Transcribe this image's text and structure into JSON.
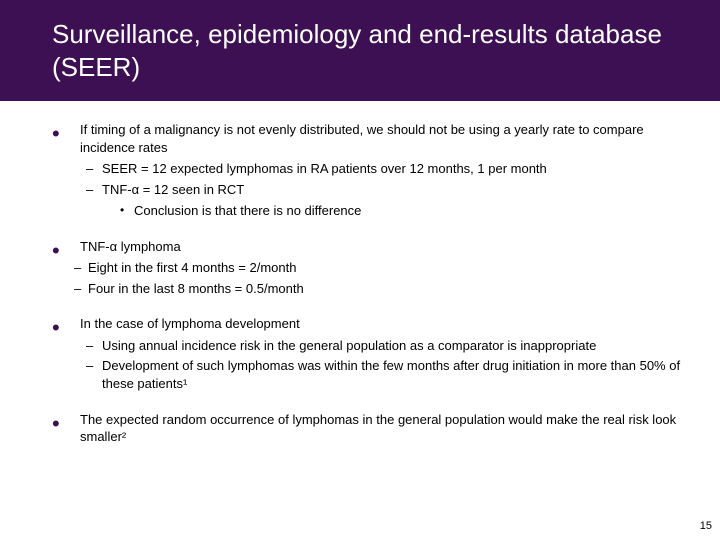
{
  "colors": {
    "title_bg": "#3c1053",
    "title_text": "#ffffff",
    "bullet_color": "#3c1053",
    "body_text": "#000000",
    "background": "#ffffff"
  },
  "typography": {
    "title_fontsize": 26,
    "body_fontsize": 13,
    "font_family": "Arial"
  },
  "title": "Surveillance, epidemiology and end-results database (SEER)",
  "bullets": [
    {
      "text": "If timing of a malignancy is not evenly distributed, we should not be using a yearly rate to compare incidence rates",
      "sub": [
        {
          "text": "SEER = 12 expected lymphomas in RA patients over 12 months, 1 per month"
        },
        {
          "text": "TNF-α = 12 seen in RCT",
          "sub": [
            {
              "text": "Conclusion is that there is no difference"
            }
          ]
        }
      ]
    },
    {
      "text": "TNF-α lymphoma",
      "sub_style": "b",
      "sub": [
        {
          "text": "Eight in the first 4 months = 2/month"
        },
        {
          "text": "Four in the last 8 months = 0.5/month"
        }
      ]
    },
    {
      "text": "In the case of lymphoma development",
      "sub": [
        {
          "text": "Using annual incidence risk in the general population as a comparator is inappropriate"
        },
        {
          "text": "Development of such lymphomas was within the few months after drug initiation in more than 50% of these patients¹"
        }
      ]
    },
    {
      "text": "The expected random occurrence of lymphomas in the general population would make the real risk look smaller²"
    }
  ],
  "page_number": "15"
}
